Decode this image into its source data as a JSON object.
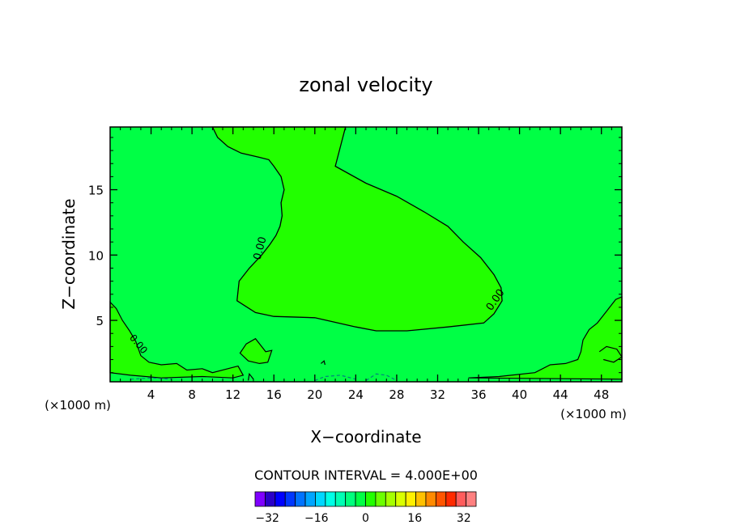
{
  "chart_data": {
    "type": "contour",
    "title": "zonal velocity",
    "xlabel": "X−coordinate",
    "ylabel": "Z−coordinate",
    "x_unit_left": "(×1000 m)",
    "x_unit_right": "(×1000 m)",
    "xlim": [
      0,
      50
    ],
    "ylim": [
      0.3,
      19.8
    ],
    "xticks": [
      4,
      8,
      12,
      16,
      20,
      24,
      28,
      32,
      36,
      40,
      44,
      48
    ],
    "yticks": [
      5,
      10,
      15
    ],
    "contour_label": "0.00",
    "contour_interval_text": "CONTOUR INTERVAL = 4.000E+00",
    "colorbar": {
      "tick_labels": [
        "−32",
        "−16",
        "0",
        "16",
        "32"
      ],
      "tick_values": [
        -32,
        -16,
        0,
        16,
        32
      ],
      "levels_min": -36,
      "levels_max": 36,
      "colors": [
        "#7f00ff",
        "#2a00c8",
        "#0000ff",
        "#0037ff",
        "#0073ff",
        "#00a5ff",
        "#00d7ff",
        "#00ffe6",
        "#00ffb4",
        "#00ff7d",
        "#00ff45",
        "#22ff00",
        "#6cff00",
        "#a6ff00",
        "#daff00",
        "#fff000",
        "#ffc100",
        "#ff8a00",
        "#ff5500",
        "#ff2a00",
        "#ff5c5c",
        "#ff8080"
      ]
    },
    "background_fill_color": "#00ff45",
    "positive_region_color": "#22ff00",
    "series": [
      {
        "region": "upper-positive",
        "x": [
          10.0,
          10.5,
          11.5,
          12.8,
          14.5,
          15.5,
          16.0,
          16.7,
          17.0,
          16.7,
          16.8,
          16.6,
          16.2,
          15.6,
          14.8,
          13.6,
          12.6,
          12.4,
          13.0,
          14.2,
          16.0,
          20.0,
          24.0,
          26.0,
          29.0,
          33.0,
          36.5,
          37.5,
          38.3,
          38.2,
          37.5,
          36.2,
          34.5,
          33.0,
          30.7,
          28.0,
          25.0,
          22.0,
          23.0
        ],
        "y": [
          19.8,
          19.0,
          18.3,
          17.8,
          17.5,
          17.3,
          16.8,
          16.0,
          15.0,
          14.0,
          13.0,
          12.2,
          11.5,
          10.8,
          10.0,
          9.0,
          8.0,
          6.5,
          6.2,
          5.6,
          5.3,
          5.2,
          4.5,
          4.2,
          4.2,
          4.5,
          4.8,
          5.5,
          6.5,
          7.5,
          8.5,
          9.8,
          11.0,
          12.2,
          13.3,
          14.5,
          15.5,
          16.8,
          19.8
        ]
      }
    ]
  }
}
